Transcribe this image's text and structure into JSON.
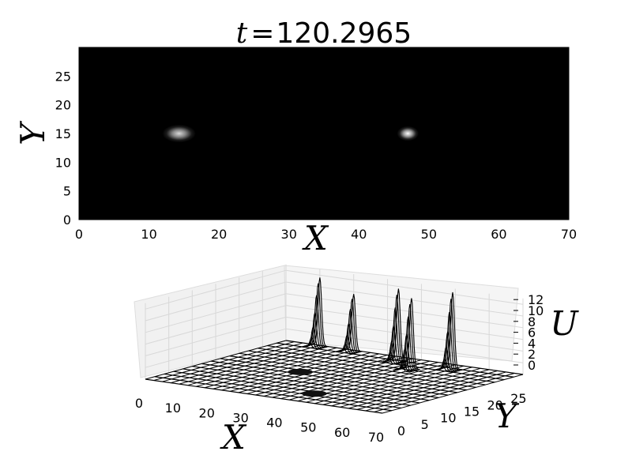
{
  "title_var": "t",
  "title_eq": "=",
  "title_value": "120.2965",
  "chart_data": [
    {
      "type": "heatmap",
      "colormap": "gray",
      "xlabel": "X",
      "ylabel": "Y",
      "xlim": [
        0,
        70
      ],
      "ylim": [
        0,
        30
      ],
      "xticks": [
        0,
        10,
        20,
        30,
        40,
        50,
        60,
        70
      ],
      "yticks": [
        0,
        5,
        10,
        15,
        20,
        25
      ],
      "blobs": [
        {
          "x": 14.3,
          "y": 15.0,
          "peak": 0.85,
          "sx": 2.0,
          "sy": 1.2
        },
        {
          "x": 47.0,
          "y": 15.0,
          "peak": 1.0,
          "sx": 1.3,
          "sy": 1.0
        }
      ]
    },
    {
      "type": "surface3d",
      "xlabel": "X",
      "ylabel": "Y",
      "zlabel": "U",
      "xlim": [
        0,
        70
      ],
      "ylim": [
        0,
        30
      ],
      "zlim": [
        0,
        13
      ],
      "xticks": [
        0,
        10,
        20,
        30,
        40,
        50,
        60,
        70
      ],
      "yticks": [
        0,
        5,
        10,
        15,
        20,
        25
      ],
      "zticks": [
        0,
        2,
        4,
        6,
        8,
        10,
        12
      ],
      "grid": true,
      "peaks": [
        {
          "x": 10,
          "y": 30,
          "z": 11.6
        },
        {
          "x": 20,
          "y": 30,
          "z": 9.6
        },
        {
          "x": 36,
          "y": 28,
          "z": 12.3
        },
        {
          "x": 44,
          "y": 25,
          "z": 12.0
        },
        {
          "x": 52,
          "y": 28,
          "z": 13.0
        },
        {
          "x": 25,
          "y": 15,
          "z": 0.2
        },
        {
          "x": 43,
          "y": 5,
          "z": 0.2
        }
      ]
    }
  ]
}
